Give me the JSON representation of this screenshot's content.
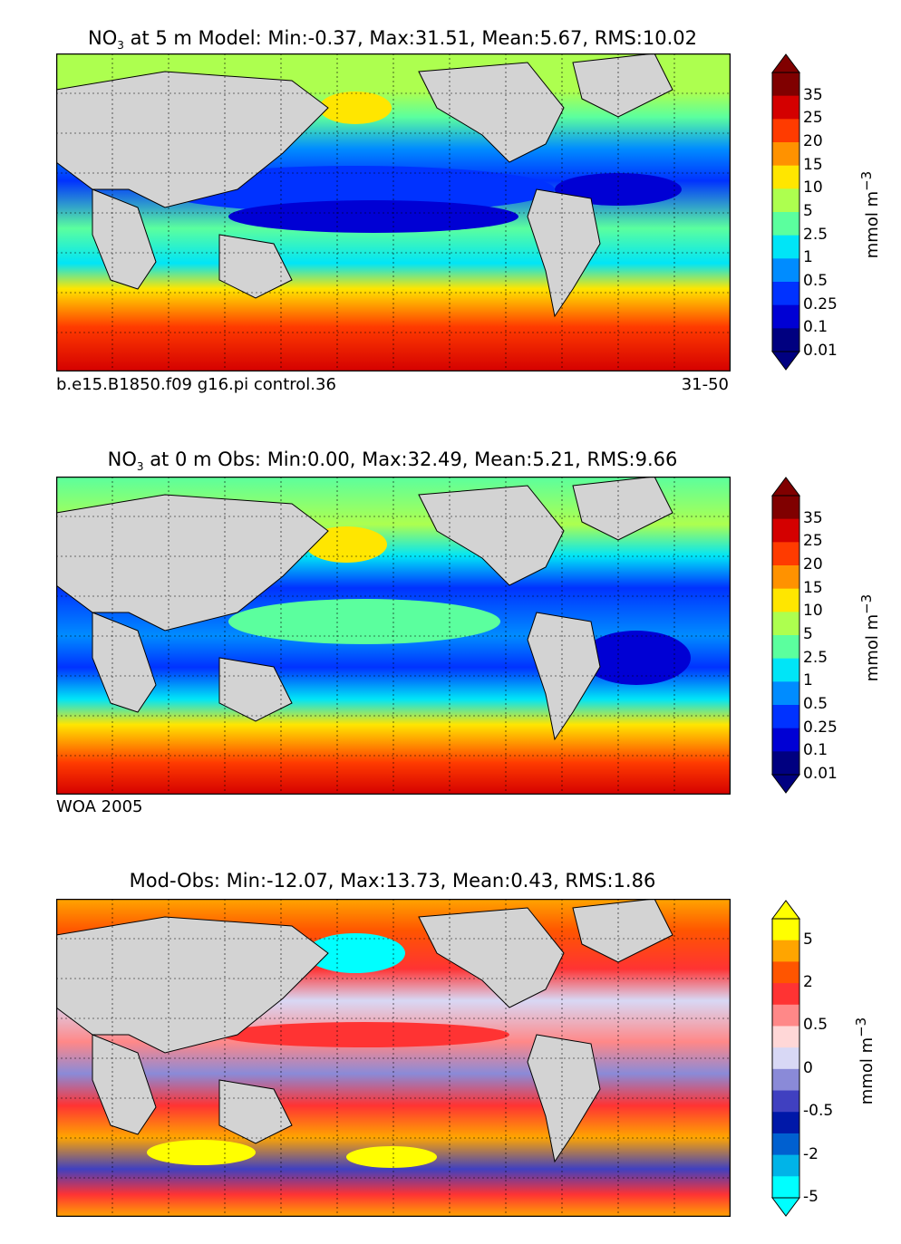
{
  "panels": [
    {
      "id": "model",
      "title_prefix": "NO",
      "title_sub": "3",
      "title_rest": " at 5 m Model: Min:-0.37, Max:31.51, Mean:5.67, RMS:10.02",
      "caption_left": "b.e15.B1850.f09 g16.pi control.36",
      "caption_right": "31-50"
    },
    {
      "id": "obs",
      "title_prefix": "NO",
      "title_sub": "3",
      "title_rest": " at 0 m Obs: Min:0.00, Max:32.49, Mean:5.21, RMS:9.66",
      "caption_left": "WOA 2005",
      "caption_right": ""
    },
    {
      "id": "diff",
      "title_prefix": "",
      "title_sub": "",
      "title_rest": "Mod-Obs: Min:-12.07, Max:13.73, Mean:0.43, RMS:1.86",
      "caption_left": "",
      "caption_right": ""
    }
  ],
  "colorbars": {
    "concentration": {
      "unit": "mmol m",
      "unit_sup": "−3",
      "tick_labels": [
        "35",
        "25",
        "20",
        "15",
        "10",
        "5",
        "2.5",
        "1",
        "0.5",
        "0.25",
        "0.1",
        "0.01"
      ],
      "colors": [
        "#800000",
        "#d40000",
        "#ff3b00",
        "#ff9200",
        "#ffe600",
        "#adff4f",
        "#5bff9e",
        "#00e5f7",
        "#008cff",
        "#0032ff",
        "#0000d4",
        "#000080"
      ],
      "extend_top": "#800000",
      "extend_bottom": "#000080"
    },
    "difference": {
      "unit": "mmol m",
      "unit_sup": "−3",
      "tick_labels": [
        "5",
        "2",
        "0.5",
        "0",
        "-0.5",
        "-2",
        "-5"
      ],
      "colors": [
        "#ffff00",
        "#ffa500",
        "#ff5500",
        "#ff3333",
        "#ff8888",
        "#ffd7d7",
        "#d8d8f5",
        "#8a8ad8",
        "#4040c0",
        "#0018a8",
        "#0060d0",
        "#00b4e8",
        "#00ffff"
      ],
      "extend_top": "#ffff00",
      "extend_bottom": "#00ffff"
    }
  },
  "chart_data": [
    {
      "type": "heatmap",
      "title": "NO3 at 5 m Model: Min:-0.37, Max:31.51, Mean:5.67, RMS:10.02",
      "stats": {
        "min": -0.37,
        "max": 31.51,
        "mean": 5.67,
        "rms": 10.02
      },
      "depth_m": 5,
      "source": "b.e15.B1850.f09 g16.pi control.36",
      "years": "31-50",
      "levels": [
        0.01,
        0.1,
        0.25,
        0.5,
        1,
        2.5,
        5,
        10,
        15,
        20,
        25,
        35
      ],
      "unit": "mmol m^-3"
    },
    {
      "type": "heatmap",
      "title": "NO3 at 0 m Obs: Min:0.00, Max:32.49, Mean:5.21, RMS:9.66",
      "stats": {
        "min": 0.0,
        "max": 32.49,
        "mean": 5.21,
        "rms": 9.66
      },
      "depth_m": 0,
      "source": "WOA 2005",
      "levels": [
        0.01,
        0.1,
        0.25,
        0.5,
        1,
        2.5,
        5,
        10,
        15,
        20,
        25,
        35
      ],
      "unit": "mmol m^-3"
    },
    {
      "type": "heatmap",
      "title": "Mod-Obs: Min:-12.07, Max:13.73, Mean:0.43, RMS:1.86",
      "stats": {
        "min": -12.07,
        "max": 13.73,
        "mean": 0.43,
        "rms": 1.86
      },
      "levels": [
        -5,
        -2,
        -0.5,
        0,
        0.5,
        2,
        5
      ],
      "unit": "mmol m^-3"
    }
  ]
}
